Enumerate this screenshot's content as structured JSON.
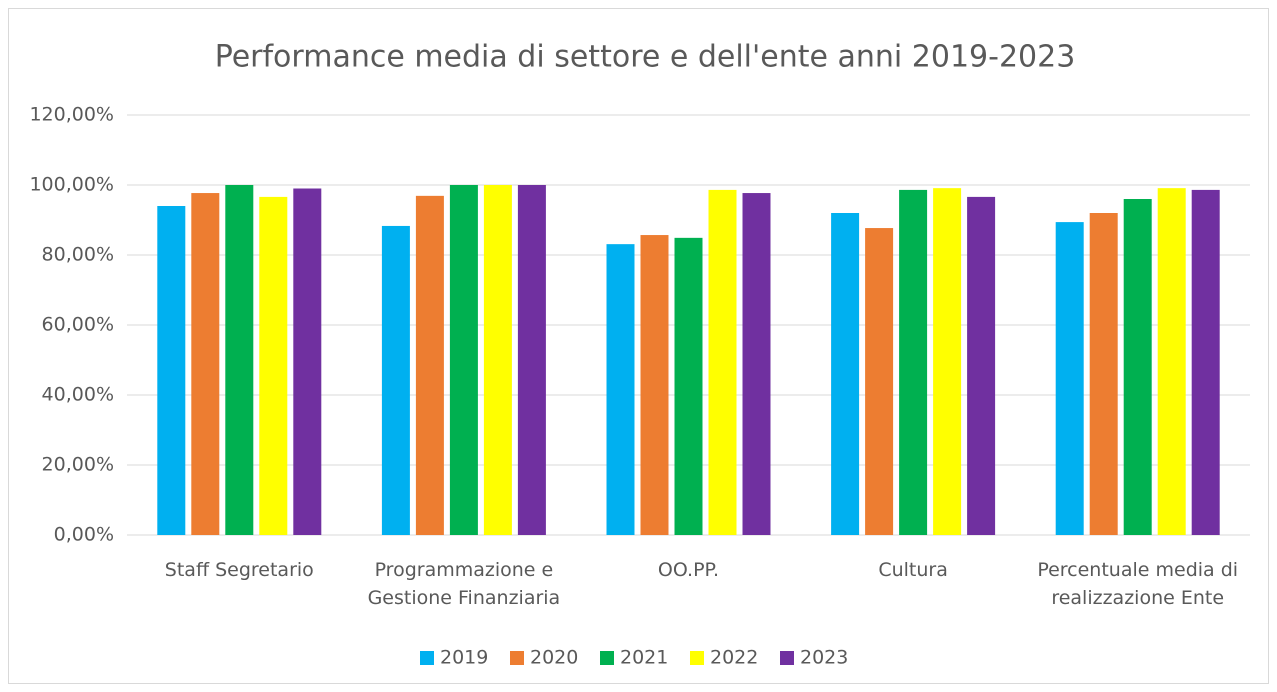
{
  "chart_data": {
    "type": "bar",
    "title": "Performance  media di settore  e dell'ente anni 2019-2023",
    "categories": [
      "Staff Segretario",
      "Programmazione e Gestione Finanziaria",
      "OO.PP.",
      "Cultura",
      "Percentuale media di realizzazione Ente"
    ],
    "series": [
      {
        "name": "2019",
        "color": "#00b0f0",
        "values": [
          94,
          88.3,
          83.1,
          92,
          89.4
        ]
      },
      {
        "name": "2020",
        "color": "#ed7d31",
        "values": [
          97.7,
          96.9,
          85.7,
          87.7,
          92
        ]
      },
      {
        "name": "2021",
        "color": "#00b050",
        "values": [
          100,
          100,
          84.9,
          98.6,
          96
        ]
      },
      {
        "name": "2022",
        "color": "#ffff00",
        "values": [
          96.6,
          100,
          98.6,
          99.1,
          99.1
        ]
      },
      {
        "name": "2023",
        "color": "#7030a0",
        "values": [
          99,
          100,
          97.7,
          96.6,
          98.6
        ]
      }
    ],
    "ylim": [
      0,
      120
    ],
    "yticks": [
      {
        "value": 0,
        "label": "0,00%"
      },
      {
        "value": 20,
        "label": "20,00%"
      },
      {
        "value": 40,
        "label": "40,00%"
      },
      {
        "value": 60,
        "label": "60,00%"
      },
      {
        "value": 80,
        "label": "80,00%"
      },
      {
        "value": 100,
        "label": "100,00%"
      },
      {
        "value": 120,
        "label": "120,00%"
      }
    ],
    "grid": true,
    "legend": "bottom"
  }
}
